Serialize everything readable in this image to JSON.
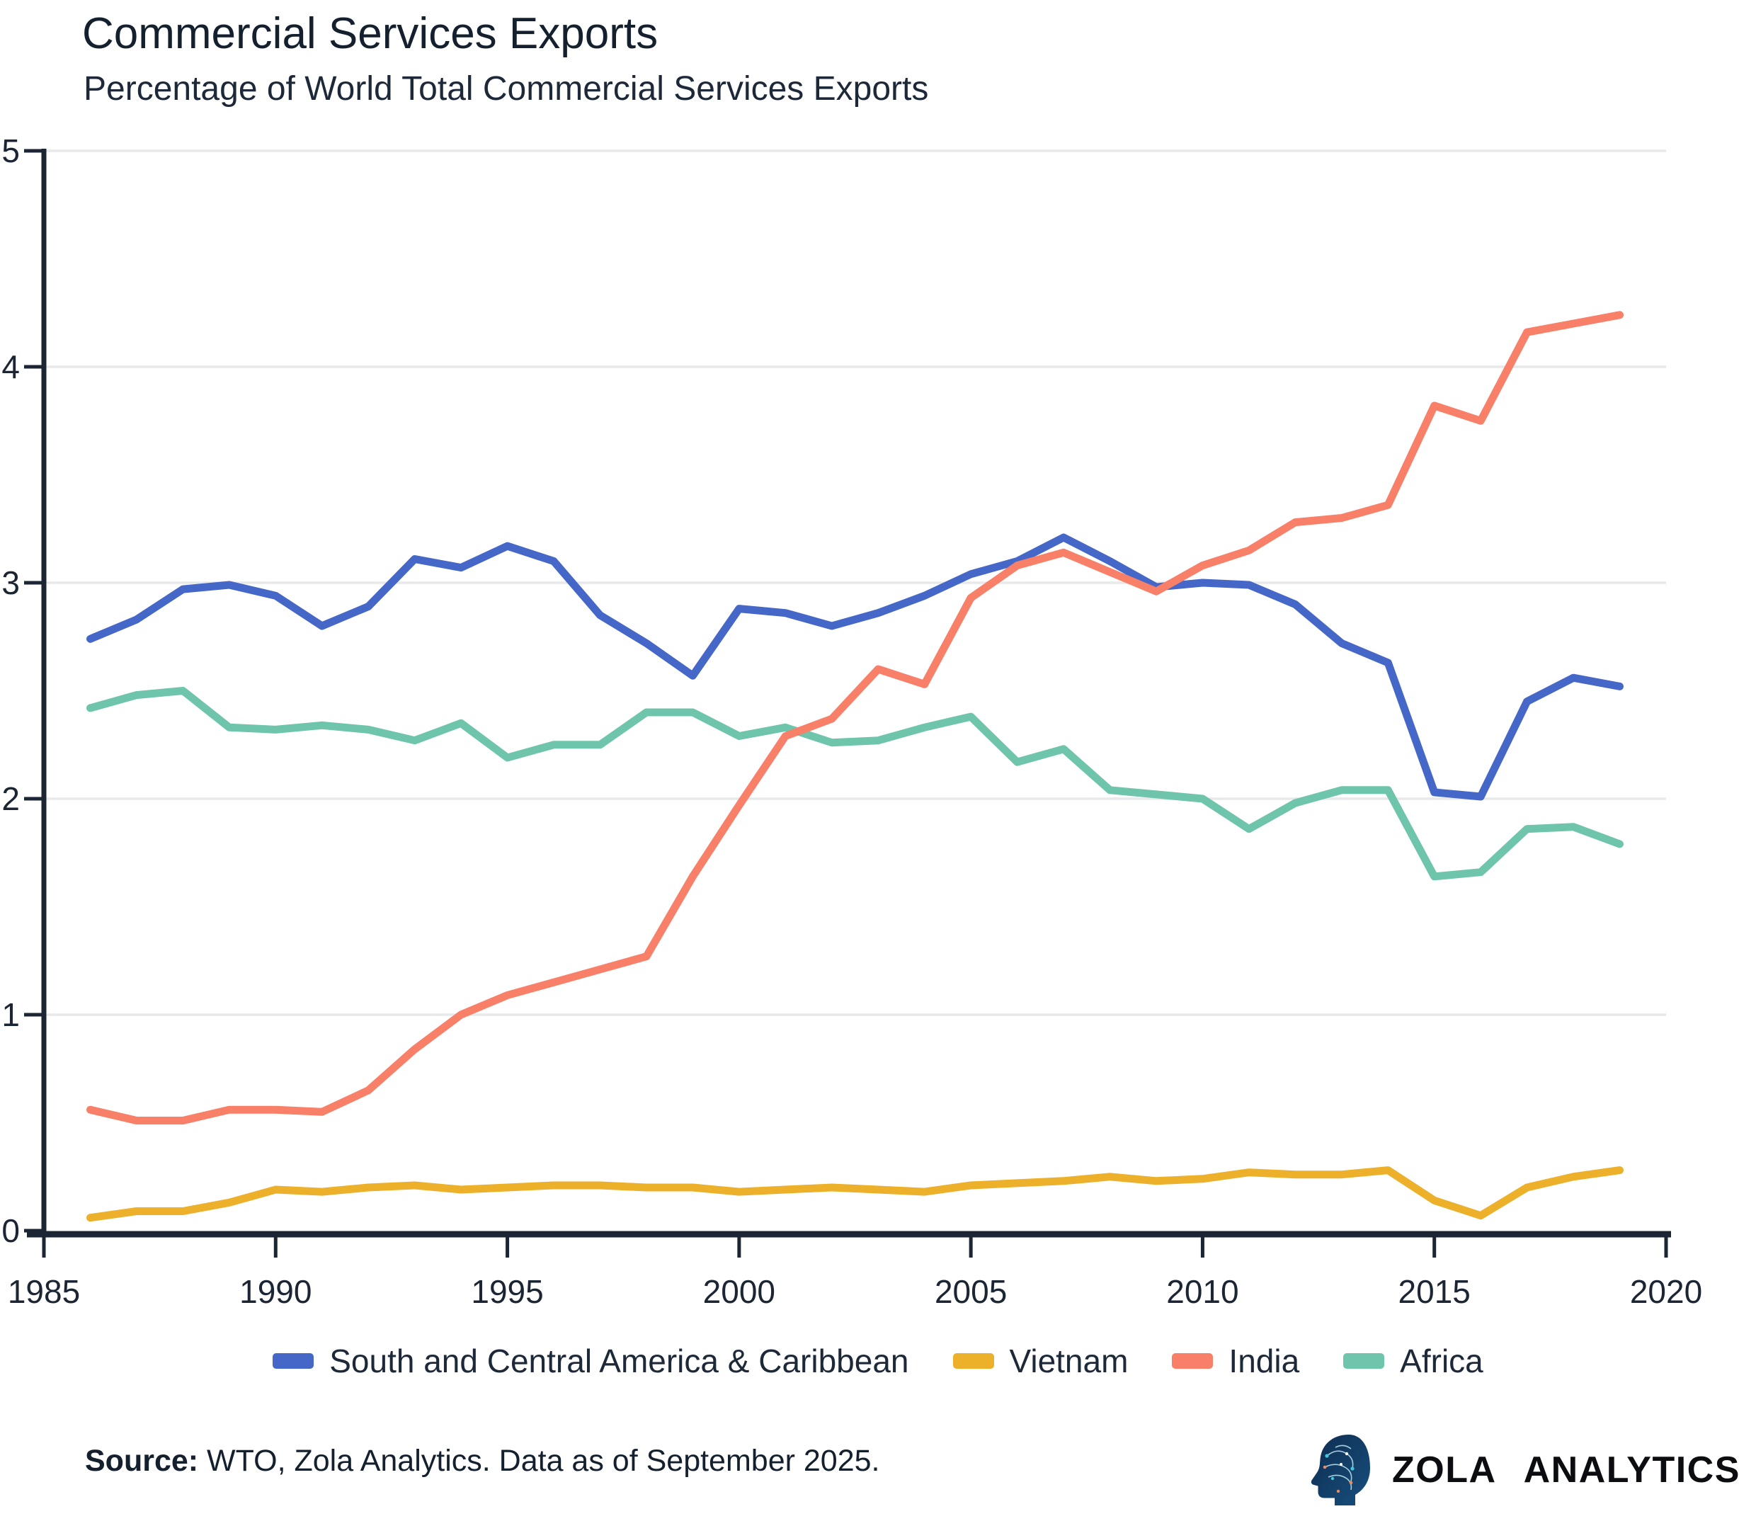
{
  "header": {
    "title": "Commercial Services Exports",
    "subtitle": "Percentage of World Total Commercial Services Exports"
  },
  "footer": {
    "source_label": "Source:",
    "source_text": " WTO, Zola Analytics. Data as of September 2025.",
    "brand": "ZOLA ANALYTICS"
  },
  "colors": {
    "text": "#1b2533",
    "axis": "#1b2533",
    "grid": "#e8e9ea",
    "series_blue": "#4567c8",
    "series_yellow": "#ecb02a",
    "series_red": "#f87f68",
    "series_teal": "#6fc5ab"
  },
  "chart_data": {
    "type": "line",
    "title": "Commercial Services Exports",
    "subtitle": "Percentage of World Total Commercial Services Exports",
    "xlabel": "",
    "ylabel": "",
    "xlim": [
      1985,
      2020
    ],
    "ylim": [
      0,
      5
    ],
    "x_ticks": [
      1985,
      1990,
      1995,
      2000,
      2005,
      2010,
      2015,
      2020
    ],
    "y_ticks": [
      0,
      1,
      2,
      3,
      4,
      5
    ],
    "grid": "horizontal",
    "legend_position": "bottom",
    "x": [
      1986,
      1987,
      1988,
      1989,
      1990,
      1991,
      1992,
      1993,
      1994,
      1995,
      1996,
      1997,
      1998,
      1999,
      2000,
      2001,
      2002,
      2003,
      2004,
      2005,
      2006,
      2007,
      2008,
      2009,
      2010,
      2011,
      2012,
      2013,
      2014,
      2015,
      2016,
      2017,
      2018,
      2019
    ],
    "series": [
      {
        "name": "South and Central America & Caribbean",
        "color": "#4567c8",
        "values": [
          2.74,
          2.83,
          2.97,
          2.99,
          2.94,
          2.8,
          2.89,
          3.11,
          3.07,
          3.17,
          3.1,
          2.85,
          2.72,
          2.57,
          2.88,
          2.86,
          2.8,
          2.86,
          2.94,
          3.04,
          3.1,
          3.21,
          3.1,
          2.98,
          3.0,
          2.99,
          2.9,
          2.72,
          2.63,
          2.03,
          2.01,
          2.45,
          2.56,
          2.52
        ]
      },
      {
        "name": "Vietnam",
        "color": "#ecb02a",
        "values": [
          0.06,
          0.09,
          0.09,
          0.13,
          0.19,
          0.18,
          0.2,
          0.21,
          0.19,
          0.2,
          0.21,
          0.21,
          0.2,
          0.2,
          0.18,
          0.19,
          0.2,
          0.19,
          0.18,
          0.21,
          0.22,
          0.23,
          0.25,
          0.23,
          0.24,
          0.27,
          0.26,
          0.26,
          0.28,
          0.14,
          0.07,
          0.2,
          0.25,
          0.28
        ]
      },
      {
        "name": "India",
        "color": "#f87f68",
        "values": [
          0.56,
          0.51,
          0.51,
          0.56,
          0.56,
          0.55,
          0.65,
          0.84,
          1.0,
          1.09,
          1.15,
          1.21,
          1.27,
          1.64,
          1.97,
          2.29,
          2.37,
          2.6,
          2.53,
          2.93,
          3.08,
          3.14,
          3.05,
          2.96,
          3.08,
          3.15,
          3.28,
          3.3,
          3.36,
          3.82,
          3.75,
          4.16,
          4.2,
          4.24
        ]
      },
      {
        "name": "Africa",
        "color": "#6fc5ab",
        "values": [
          2.42,
          2.48,
          2.5,
          2.33,
          2.32,
          2.34,
          2.32,
          2.27,
          2.35,
          2.19,
          2.25,
          2.25,
          2.4,
          2.4,
          2.29,
          2.33,
          2.26,
          2.27,
          2.33,
          2.38,
          2.17,
          2.23,
          2.04,
          2.02,
          2.0,
          1.86,
          1.98,
          2.04,
          2.04,
          1.64,
          1.66,
          1.86,
          1.87,
          1.79
        ]
      }
    ],
    "draw_order": [
      0,
      1,
      3,
      2
    ]
  }
}
